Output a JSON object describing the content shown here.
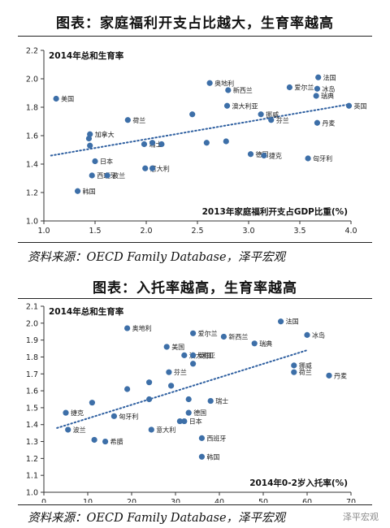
{
  "panel1": {
    "title": "图表：家庭福利开支占比越大，生育率越高",
    "source": "资料来源：OECD Family Database，泽平宏观"
  },
  "panel2": {
    "title": "图表：入托率越高，生育率越高",
    "source": "资料来源：OECD Family Database，泽平宏观"
  },
  "watermark": "泽平宏观",
  "colors": {
    "point": "#3d6fa8",
    "trend": "#2e5fa0",
    "axis": "#333333"
  },
  "chart_data": [
    {
      "type": "scatter",
      "title": "2014年总和生育率",
      "xlabel": "2013年家庭福利开支占GDP比重(%)",
      "ylabel": "2014年总和生育率",
      "xlim": [
        1.0,
        4.0
      ],
      "ylim": [
        1.0,
        2.2
      ],
      "xticks": [
        "1.0",
        "1.5",
        "2.0",
        "2.5",
        "3.0",
        "3.5",
        "4.0"
      ],
      "yticks": [
        "1.0",
        "1.2",
        "1.4",
        "1.6",
        "1.8",
        "2.0",
        "2.2"
      ],
      "grid": false,
      "trendline": {
        "x": [
          1.07,
          3.98
        ],
        "y": [
          1.46,
          1.82
        ],
        "style": "dotted"
      },
      "points": [
        {
          "label": "美国",
          "x": 1.12,
          "y": 1.86
        },
        {
          "label": "加拿大",
          "x": 1.45,
          "y": 1.61
        },
        {
          "label": "",
          "x": 1.44,
          "y": 1.58
        },
        {
          "label": "",
          "x": 1.45,
          "y": 1.53
        },
        {
          "label": "日本",
          "x": 1.5,
          "y": 1.42
        },
        {
          "label": "西班牙",
          "x": 1.47,
          "y": 1.32
        },
        {
          "label": "波兰",
          "x": 1.62,
          "y": 1.32
        },
        {
          "label": "韩国",
          "x": 1.33,
          "y": 1.21
        },
        {
          "label": "荷兰",
          "x": 1.82,
          "y": 1.71
        },
        {
          "label": "瑞士",
          "x": 1.98,
          "y": 1.54
        },
        {
          "label": "",
          "x": 2.06,
          "y": 1.55
        },
        {
          "label": "",
          "x": 2.15,
          "y": 1.54
        },
        {
          "label": "意大利",
          "x": 1.99,
          "y": 1.37
        },
        {
          "label": "",
          "x": 2.06,
          "y": 1.37
        },
        {
          "label": "奥地利",
          "x": 2.62,
          "y": 1.97
        },
        {
          "label": "新西兰",
          "x": 2.8,
          "y": 1.92
        },
        {
          "label": "澳大利亚",
          "x": 2.79,
          "y": 1.81
        },
        {
          "label": "",
          "x": 2.45,
          "y": 1.75
        },
        {
          "label": "",
          "x": 2.59,
          "y": 1.55
        },
        {
          "label": "",
          "x": 2.78,
          "y": 1.56
        },
        {
          "label": "德国",
          "x": 3.02,
          "y": 1.47
        },
        {
          "label": "捷克",
          "x": 3.15,
          "y": 1.46
        },
        {
          "label": "挪威",
          "x": 3.12,
          "y": 1.75
        },
        {
          "label": "芬兰",
          "x": 3.22,
          "y": 1.71
        },
        {
          "label": "爱尔兰",
          "x": 3.4,
          "y": 1.94
        },
        {
          "label": "法国",
          "x": 3.68,
          "y": 2.01
        },
        {
          "label": "冰岛",
          "x": 3.67,
          "y": 1.93
        },
        {
          "label": "瑞典",
          "x": 3.66,
          "y": 1.88
        },
        {
          "label": "丹麦",
          "x": 3.67,
          "y": 1.69
        },
        {
          "label": "匈牙利",
          "x": 3.58,
          "y": 1.44
        },
        {
          "label": "英国",
          "x": 3.98,
          "y": 1.81
        }
      ]
    },
    {
      "type": "scatter",
      "title": "2014年总和生育率",
      "xlabel": "2014年0-2岁入托率(%)",
      "ylabel": "2014年总和生育率",
      "xlim": [
        0,
        70
      ],
      "ylim": [
        1.0,
        2.1
      ],
      "xticks": [
        "0",
        "10",
        "20",
        "30",
        "40",
        "50",
        "60",
        "70"
      ],
      "yticks": [
        "1.0",
        "1.1",
        "1.2",
        "1.3",
        "1.4",
        "1.5",
        "1.6",
        "1.7",
        "1.8",
        "1.9",
        "2.0",
        "2.1"
      ],
      "grid": false,
      "trendline": {
        "x": [
          3,
          60
        ],
        "y": [
          1.38,
          1.84
        ],
        "style": "dotted"
      },
      "points": [
        {
          "label": "捷克",
          "x": 5,
          "y": 1.47
        },
        {
          "label": "波兰",
          "x": 5.5,
          "y": 1.37
        },
        {
          "label": "",
          "x": 11,
          "y": 1.53
        },
        {
          "label": "",
          "x": 11.5,
          "y": 1.31
        },
        {
          "label": "希腊",
          "x": 14,
          "y": 1.3
        },
        {
          "label": "匈牙利",
          "x": 16,
          "y": 1.45
        },
        {
          "label": "",
          "x": 19,
          "y": 1.61
        },
        {
          "label": "奥地利",
          "x": 19,
          "y": 1.97
        },
        {
          "label": "",
          "x": 24,
          "y": 1.55
        },
        {
          "label": "",
          "x": 24,
          "y": 1.65
        },
        {
          "label": "意大利",
          "x": 24.5,
          "y": 1.37
        },
        {
          "label": "美国",
          "x": 28,
          "y": 1.86
        },
        {
          "label": "芬兰",
          "x": 28.5,
          "y": 1.71
        },
        {
          "label": "",
          "x": 29,
          "y": 1.63
        },
        {
          "label": "爱尔兰",
          "x": 34,
          "y": 1.94
        },
        {
          "label": "澳大利亚",
          "x": 32,
          "y": 1.81
        },
        {
          "label": "英国",
          "x": 34,
          "y": 1.81
        },
        {
          "label": "",
          "x": 34,
          "y": 1.76
        },
        {
          "label": "",
          "x": 33,
          "y": 1.55
        },
        {
          "label": "德国",
          "x": 33,
          "y": 1.47
        },
        {
          "label": "日本",
          "x": 32,
          "y": 1.42
        },
        {
          "label": "",
          "x": 31,
          "y": 1.42
        },
        {
          "label": "瑞士",
          "x": 38,
          "y": 1.54
        },
        {
          "label": "西班牙",
          "x": 36,
          "y": 1.32
        },
        {
          "label": "韩国",
          "x": 36,
          "y": 1.21
        },
        {
          "label": "新西兰",
          "x": 41,
          "y": 1.92
        },
        {
          "label": "瑞典",
          "x": 48,
          "y": 1.88
        },
        {
          "label": "法国",
          "x": 54,
          "y": 2.01
        },
        {
          "label": "冰岛",
          "x": 60,
          "y": 1.93
        },
        {
          "label": "挪威",
          "x": 57,
          "y": 1.75
        },
        {
          "label": "荷兰",
          "x": 57,
          "y": 1.71
        },
        {
          "label": "丹麦",
          "x": 65,
          "y": 1.69
        }
      ]
    }
  ]
}
